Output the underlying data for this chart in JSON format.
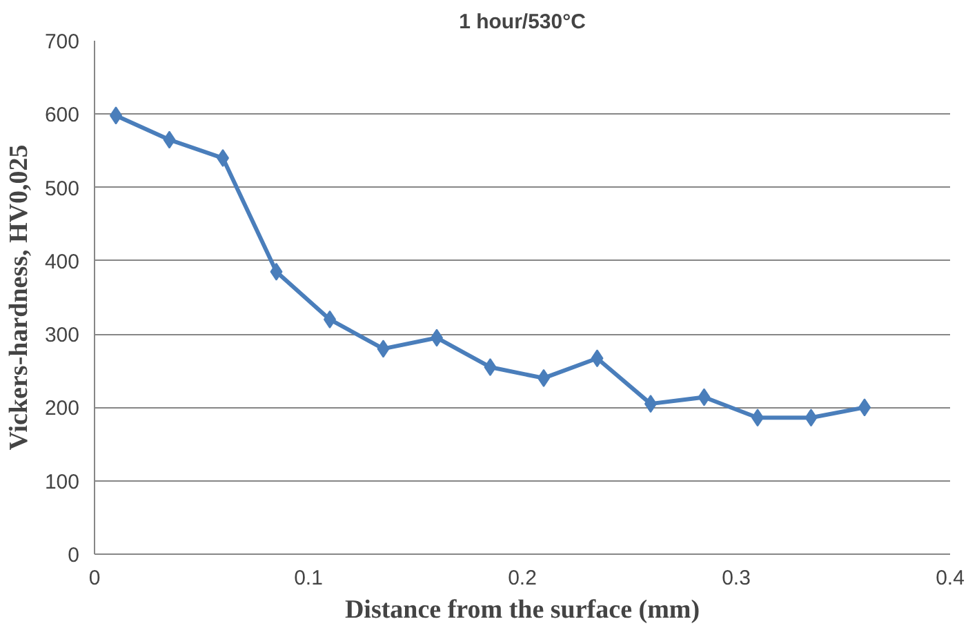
{
  "chart_data": {
    "type": "line",
    "title": "1 hour/530°C",
    "xlabel": "Distance from the surface (mm)",
    "ylabel": "Vickers-hardness, HV0,025",
    "x": [
      0.01,
      0.035,
      0.06,
      0.085,
      0.11,
      0.135,
      0.16,
      0.185,
      0.21,
      0.235,
      0.26,
      0.285,
      0.31,
      0.335,
      0.36
    ],
    "series": [
      {
        "color": "#4a7ebb",
        "values": [
          598,
          565,
          540,
          385,
          320,
          280,
          295,
          255,
          240,
          267,
          205,
          214,
          186,
          186,
          200
        ]
      }
    ],
    "xlim": [
      0,
      0.4
    ],
    "xticks": [
      0,
      0.1,
      0.2,
      0.3,
      0.4
    ],
    "ylim": [
      0,
      700
    ],
    "yticks": [
      0,
      100,
      200,
      300,
      400,
      500,
      600,
      700
    ],
    "grid": "y",
    "marker": "diamond",
    "line_style": "solid"
  }
}
